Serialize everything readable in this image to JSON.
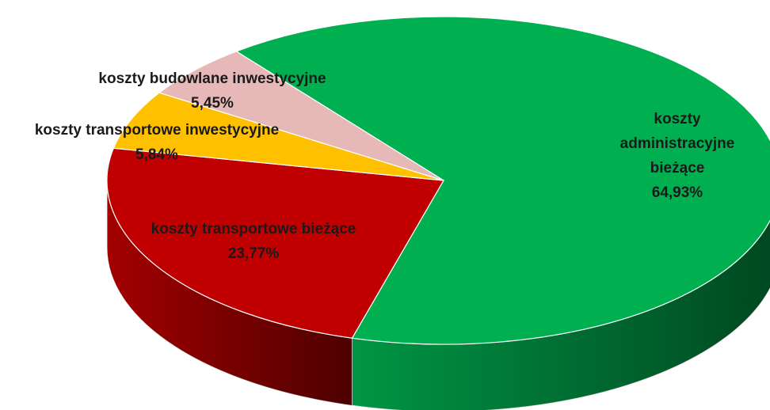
{
  "chart_data": {
    "type": "pie",
    "categories": [
      "koszty administracyjne bieżące",
      "koszty transportowe bieżące",
      "koszty transportowe inwestycyjne",
      "koszty budowlane inwestycyjne"
    ],
    "values": [
      64.93,
      23.77,
      5.84,
      5.45
    ],
    "value_labels": [
      "64,93%",
      "23,77%",
      "5,84%",
      "5,45%"
    ],
    "colors": [
      "#00b050",
      "#c00000",
      "#ffc000",
      "#e6b9b8"
    ]
  }
}
